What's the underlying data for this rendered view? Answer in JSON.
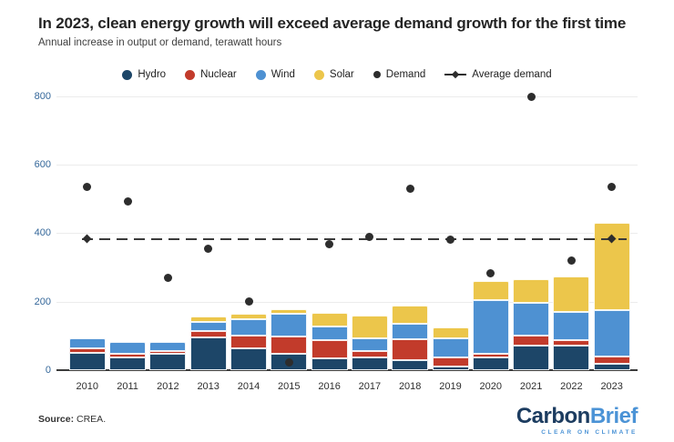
{
  "header": {
    "title": "In 2023, clean energy growth will exceed average demand growth for the first time",
    "subtitle": "Annual increase in output or demand, terawatt hours"
  },
  "footer": {
    "source_label": "Source:",
    "source_value": "CREA.",
    "logo_part1": "Carbon",
    "logo_part2": "Brief",
    "logo_tagline": "CLEAR ON CLIMATE"
  },
  "colors": {
    "hydro": "#1d4668",
    "nuclear": "#c23b2b",
    "wind": "#4e91d2",
    "solar": "#ecc64b",
    "demand": "#2d2d2d",
    "avg_line": "#3a3a3a",
    "axis_label": "#34679a",
    "grid": "#ececec",
    "baseline": "#3b3b3b"
  },
  "chart_data": {
    "type": "bar",
    "subtype": "stacked-bars-with-scatter-and-reference-line",
    "units": "terawatt hours",
    "categories": [
      "2010",
      "2011",
      "2012",
      "2013",
      "2014",
      "2015",
      "2016",
      "2017",
      "2018",
      "2019",
      "2020",
      "2021",
      "2022",
      "2023"
    ],
    "series": [
      {
        "name": "Hydro",
        "color_key": "hydro",
        "values": [
          51,
          36,
          48,
          95,
          63,
          48,
          33,
          37,
          29,
          11,
          36,
          71,
          70,
          18
        ]
      },
      {
        "name": "Nuclear",
        "color_key": "nuclear",
        "values": [
          13,
          11,
          6,
          19,
          38,
          50,
          55,
          19,
          60,
          26,
          11,
          30,
          18,
          22
        ]
      },
      {
        "name": "Wind",
        "color_key": "wind",
        "values": [
          28,
          35,
          27,
          27,
          47,
          67,
          40,
          37,
          46,
          56,
          158,
          96,
          81,
          136
        ]
      },
      {
        "name": "Solar",
        "color_key": "solar",
        "values": [
          0,
          0,
          0,
          15,
          15,
          13,
          38,
          65,
          53,
          31,
          56,
          68,
          104,
          254
        ]
      }
    ],
    "scatter": {
      "name": "Demand",
      "color_key": "demand",
      "values": [
        535,
        492,
        268,
        355,
        200,
        22,
        367,
        390,
        530,
        380,
        282,
        798,
        320,
        535
      ]
    },
    "reference_line": {
      "name": "Average demand",
      "value": 383,
      "style": "dashed",
      "color_key": "avg_line"
    },
    "title": "In 2023, clean energy growth will exceed average demand growth for the first time",
    "xlabel": "",
    "ylabel": "",
    "ylim": [
      0,
      800
    ],
    "yticks": [
      0,
      200,
      400,
      600,
      800
    ],
    "grid": true,
    "legend_position": "top"
  }
}
